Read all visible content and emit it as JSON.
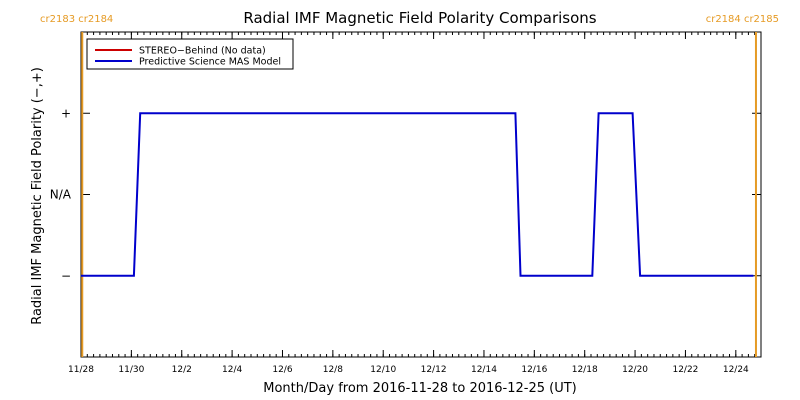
{
  "chart_data": {
    "type": "line",
    "title": "Radial IMF Magnetic Field Polarity Comparisons",
    "xlabel": "Month/Day from 2016-11-28 to 2016-12-25 (UT)",
    "ylabel": "Radial IMF Magnetic Field Polarity (−,+)",
    "x_range": [
      "2016-11-28",
      "2016-12-25"
    ],
    "xlim_days": [
      0,
      27
    ],
    "x_ticks": [
      {
        "day": 0,
        "label": "11/28"
      },
      {
        "day": 2,
        "label": "11/30"
      },
      {
        "day": 4,
        "label": "12/2"
      },
      {
        "day": 6,
        "label": "12/4"
      },
      {
        "day": 8,
        "label": "12/6"
      },
      {
        "day": 10,
        "label": "12/8"
      },
      {
        "day": 12,
        "label": "12/10"
      },
      {
        "day": 14,
        "label": "12/12"
      },
      {
        "day": 16,
        "label": "12/14"
      },
      {
        "day": 18,
        "label": "12/16"
      },
      {
        "day": 20,
        "label": "12/18"
      },
      {
        "day": 22,
        "label": "12/20"
      },
      {
        "day": 24,
        "label": "12/22"
      },
      {
        "day": 26,
        "label": "12/24"
      }
    ],
    "ylim": [
      -2,
      2
    ],
    "y_ticks": [
      {
        "value": 1,
        "label": "+"
      },
      {
        "value": 0,
        "label": "N/A"
      },
      {
        "value": -1,
        "label": "−"
      }
    ],
    "legend_position": "top-left",
    "series": [
      {
        "name": "STEREO−Behind (No data)",
        "color": "#cc0000",
        "points": []
      },
      {
        "name": "Predictive Science MAS Model",
        "color": "#0000cc",
        "points": [
          {
            "x": 0.0,
            "y": -1
          },
          {
            "x": 2.1,
            "y": -1
          },
          {
            "x": 2.35,
            "y": 1
          },
          {
            "x": 17.25,
            "y": 1
          },
          {
            "x": 17.45,
            "y": -1
          },
          {
            "x": 20.3,
            "y": -1
          },
          {
            "x": 20.55,
            "y": 1
          },
          {
            "x": 21.9,
            "y": 1
          },
          {
            "x": 22.2,
            "y": -1
          },
          {
            "x": 26.7,
            "y": -1
          }
        ]
      }
    ],
    "rotation_markers": [
      {
        "day": 0.05,
        "label": "cr2183 cr2184",
        "side": "left",
        "color": "#e69b25"
      },
      {
        "day": 26.8,
        "label": "cr2184 cr2185",
        "side": "right",
        "color": "#e69b25"
      }
    ]
  }
}
